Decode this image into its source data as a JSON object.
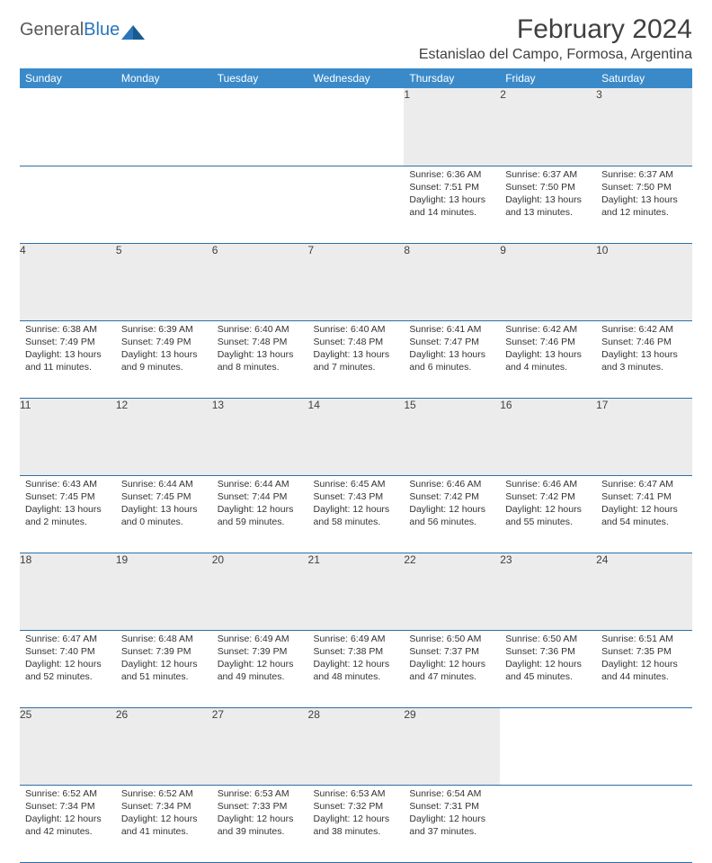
{
  "brand": {
    "name_part1": "General",
    "name_part2": "Blue"
  },
  "title": "February 2024",
  "location": "Estanislao del Campo, Formosa, Argentina",
  "colors": {
    "header_bg": "#3a8ac9",
    "header_text": "#ffffff",
    "daynum_bg": "#ececec",
    "rule": "#2f6fa5",
    "brand_gray": "#5a5a5a",
    "brand_blue": "#2a76b8",
    "body_text": "#333333"
  },
  "typography": {
    "title_fontsize": 30,
    "location_fontsize": 16,
    "header_fontsize": 12,
    "daynum_fontsize": 12,
    "cell_fontsize": 10.5
  },
  "day_headers": [
    "Sunday",
    "Monday",
    "Tuesday",
    "Wednesday",
    "Thursday",
    "Friday",
    "Saturday"
  ],
  "weeks": [
    [
      null,
      null,
      null,
      null,
      {
        "n": "1",
        "sr": "Sunrise: 6:36 AM",
        "ss": "Sunset: 7:51 PM",
        "dl": "Daylight: 13 hours and 14 minutes."
      },
      {
        "n": "2",
        "sr": "Sunrise: 6:37 AM",
        "ss": "Sunset: 7:50 PM",
        "dl": "Daylight: 13 hours and 13 minutes."
      },
      {
        "n": "3",
        "sr": "Sunrise: 6:37 AM",
        "ss": "Sunset: 7:50 PM",
        "dl": "Daylight: 13 hours and 12 minutes."
      }
    ],
    [
      {
        "n": "4",
        "sr": "Sunrise: 6:38 AM",
        "ss": "Sunset: 7:49 PM",
        "dl": "Daylight: 13 hours and 11 minutes."
      },
      {
        "n": "5",
        "sr": "Sunrise: 6:39 AM",
        "ss": "Sunset: 7:49 PM",
        "dl": "Daylight: 13 hours and 9 minutes."
      },
      {
        "n": "6",
        "sr": "Sunrise: 6:40 AM",
        "ss": "Sunset: 7:48 PM",
        "dl": "Daylight: 13 hours and 8 minutes."
      },
      {
        "n": "7",
        "sr": "Sunrise: 6:40 AM",
        "ss": "Sunset: 7:48 PM",
        "dl": "Daylight: 13 hours and 7 minutes."
      },
      {
        "n": "8",
        "sr": "Sunrise: 6:41 AM",
        "ss": "Sunset: 7:47 PM",
        "dl": "Daylight: 13 hours and 6 minutes."
      },
      {
        "n": "9",
        "sr": "Sunrise: 6:42 AM",
        "ss": "Sunset: 7:46 PM",
        "dl": "Daylight: 13 hours and 4 minutes."
      },
      {
        "n": "10",
        "sr": "Sunrise: 6:42 AM",
        "ss": "Sunset: 7:46 PM",
        "dl": "Daylight: 13 hours and 3 minutes."
      }
    ],
    [
      {
        "n": "11",
        "sr": "Sunrise: 6:43 AM",
        "ss": "Sunset: 7:45 PM",
        "dl": "Daylight: 13 hours and 2 minutes."
      },
      {
        "n": "12",
        "sr": "Sunrise: 6:44 AM",
        "ss": "Sunset: 7:45 PM",
        "dl": "Daylight: 13 hours and 0 minutes."
      },
      {
        "n": "13",
        "sr": "Sunrise: 6:44 AM",
        "ss": "Sunset: 7:44 PM",
        "dl": "Daylight: 12 hours and 59 minutes."
      },
      {
        "n": "14",
        "sr": "Sunrise: 6:45 AM",
        "ss": "Sunset: 7:43 PM",
        "dl": "Daylight: 12 hours and 58 minutes."
      },
      {
        "n": "15",
        "sr": "Sunrise: 6:46 AM",
        "ss": "Sunset: 7:42 PM",
        "dl": "Daylight: 12 hours and 56 minutes."
      },
      {
        "n": "16",
        "sr": "Sunrise: 6:46 AM",
        "ss": "Sunset: 7:42 PM",
        "dl": "Daylight: 12 hours and 55 minutes."
      },
      {
        "n": "17",
        "sr": "Sunrise: 6:47 AM",
        "ss": "Sunset: 7:41 PM",
        "dl": "Daylight: 12 hours and 54 minutes."
      }
    ],
    [
      {
        "n": "18",
        "sr": "Sunrise: 6:47 AM",
        "ss": "Sunset: 7:40 PM",
        "dl": "Daylight: 12 hours and 52 minutes."
      },
      {
        "n": "19",
        "sr": "Sunrise: 6:48 AM",
        "ss": "Sunset: 7:39 PM",
        "dl": "Daylight: 12 hours and 51 minutes."
      },
      {
        "n": "20",
        "sr": "Sunrise: 6:49 AM",
        "ss": "Sunset: 7:39 PM",
        "dl": "Daylight: 12 hours and 49 minutes."
      },
      {
        "n": "21",
        "sr": "Sunrise: 6:49 AM",
        "ss": "Sunset: 7:38 PM",
        "dl": "Daylight: 12 hours and 48 minutes."
      },
      {
        "n": "22",
        "sr": "Sunrise: 6:50 AM",
        "ss": "Sunset: 7:37 PM",
        "dl": "Daylight: 12 hours and 47 minutes."
      },
      {
        "n": "23",
        "sr": "Sunrise: 6:50 AM",
        "ss": "Sunset: 7:36 PM",
        "dl": "Daylight: 12 hours and 45 minutes."
      },
      {
        "n": "24",
        "sr": "Sunrise: 6:51 AM",
        "ss": "Sunset: 7:35 PM",
        "dl": "Daylight: 12 hours and 44 minutes."
      }
    ],
    [
      {
        "n": "25",
        "sr": "Sunrise: 6:52 AM",
        "ss": "Sunset: 7:34 PM",
        "dl": "Daylight: 12 hours and 42 minutes."
      },
      {
        "n": "26",
        "sr": "Sunrise: 6:52 AM",
        "ss": "Sunset: 7:34 PM",
        "dl": "Daylight: 12 hours and 41 minutes."
      },
      {
        "n": "27",
        "sr": "Sunrise: 6:53 AM",
        "ss": "Sunset: 7:33 PM",
        "dl": "Daylight: 12 hours and 39 minutes."
      },
      {
        "n": "28",
        "sr": "Sunrise: 6:53 AM",
        "ss": "Sunset: 7:32 PM",
        "dl": "Daylight: 12 hours and 38 minutes."
      },
      {
        "n": "29",
        "sr": "Sunrise: 6:54 AM",
        "ss": "Sunset: 7:31 PM",
        "dl": "Daylight: 12 hours and 37 minutes."
      },
      null,
      null
    ]
  ]
}
